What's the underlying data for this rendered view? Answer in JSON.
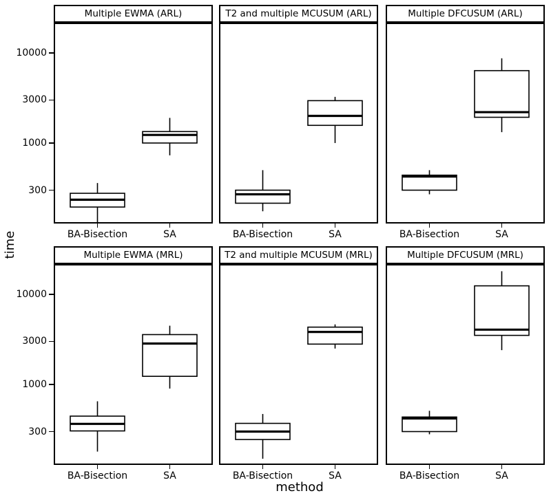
{
  "figure": {
    "y_axis_title": "time",
    "x_axis_title": "method"
  },
  "chart_data": {
    "type": "boxplot",
    "layout": "facet grid 2 rows x 3 cols, shared log y axis, no gridlines, white background, black lines",
    "xlabel": "method",
    "ylabel": "time",
    "x_categories": [
      "BA-Bisection",
      "SA"
    ],
    "y_scale": "log10",
    "y_ticks": [
      10000,
      3000,
      1000,
      300
    ],
    "y_tick_labels": [
      "10000",
      "3000",
      "1000",
      "300"
    ],
    "y_domain": [
      128,
      21600
    ],
    "grid": false,
    "colors": {
      "line": "#000000",
      "box_fill": "#ffffff",
      "text": "#000000"
    },
    "facets": [
      {
        "title": "Multiple EWMA (ARL)",
        "row": 0,
        "col": 0,
        "boxes": [
          {
            "category": "BA-Bisection",
            "whisker_low": 130,
            "q1": 195,
            "median": 235,
            "q3": 277,
            "whisker_high": 360
          },
          {
            "category": "SA",
            "whisker_low": 730,
            "q1": 1000,
            "median": 1230,
            "q3": 1340,
            "whisker_high": 1900
          }
        ]
      },
      {
        "title": "T2 and multiple MCUSUM (ARL)",
        "row": 0,
        "col": 1,
        "boxes": [
          {
            "category": "BA-Bisection",
            "whisker_low": 175,
            "q1": 215,
            "median": 270,
            "q3": 300,
            "whisker_high": 500
          },
          {
            "category": "SA",
            "whisker_low": 1000,
            "q1": 1570,
            "median": 2000,
            "q3": 2950,
            "whisker_high": 3250
          }
        ]
      },
      {
        "title": "Multiple DFCUSUM (ARL)",
        "row": 0,
        "col": 2,
        "boxes": [
          {
            "category": "BA-Bisection",
            "whisker_low": 270,
            "q1": 300,
            "median": 425,
            "q3": 440,
            "whisker_high": 500
          },
          {
            "category": "SA",
            "whisker_low": 1320,
            "q1": 1930,
            "median": 2200,
            "q3": 6350,
            "whisker_high": 8700
          }
        ]
      },
      {
        "title": "Multiple EWMA (MRL)",
        "row": 1,
        "col": 0,
        "boxes": [
          {
            "category": "BA-Bisection",
            "whisker_low": 180,
            "q1": 305,
            "median": 365,
            "q3": 445,
            "whisker_high": 650
          },
          {
            "category": "SA",
            "whisker_low": 900,
            "q1": 1230,
            "median": 2840,
            "q3": 3570,
            "whisker_high": 4480
          }
        ]
      },
      {
        "title": "T2 and multiple MCUSUM (MRL)",
        "row": 1,
        "col": 1,
        "boxes": [
          {
            "category": "BA-Bisection",
            "whisker_low": 150,
            "q1": 245,
            "median": 300,
            "q3": 370,
            "whisker_high": 470
          },
          {
            "category": "SA",
            "whisker_low": 2500,
            "q1": 2800,
            "median": 3820,
            "q3": 4320,
            "whisker_high": 4630
          }
        ]
      },
      {
        "title": "Multiple DFCUSUM (MRL)",
        "row": 1,
        "col": 2,
        "boxes": [
          {
            "category": "BA-Bisection",
            "whisker_low": 280,
            "q1": 300,
            "median": 420,
            "q3": 435,
            "whisker_high": 510
          },
          {
            "category": "SA",
            "whisker_low": 2400,
            "q1": 3500,
            "median": 4050,
            "q3": 12400,
            "whisker_high": 18000
          }
        ]
      }
    ]
  }
}
